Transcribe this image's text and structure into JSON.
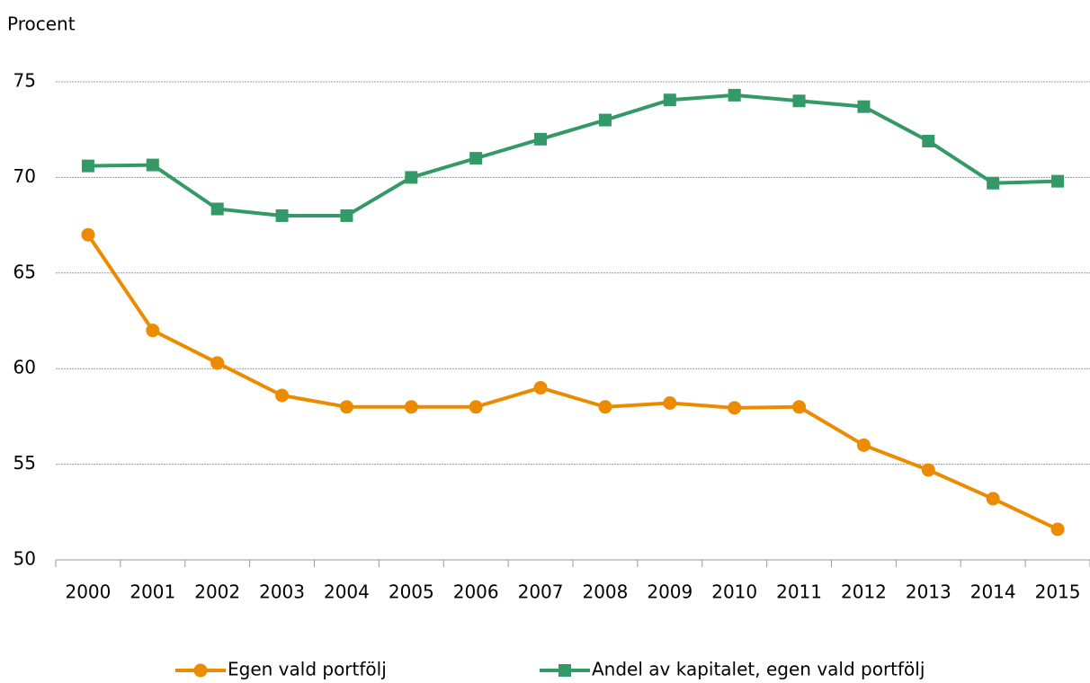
{
  "chart_data": {
    "type": "line",
    "y_label": "Procent",
    "categories": [
      "2000",
      "2001",
      "2002",
      "2003",
      "2004",
      "2005",
      "2006",
      "2007",
      "2008",
      "2009",
      "2010",
      "2011",
      "2012",
      "2013",
      "2014",
      "2015"
    ],
    "series": [
      {
        "name": "Egen vald portfölj",
        "color": "#ed8b00",
        "marker": "circle",
        "values": [
          67,
          62,
          60.3,
          58.6,
          58,
          58,
          58,
          59,
          58,
          58.2,
          57.95,
          58,
          56,
          54.7,
          53.2,
          51.6
        ]
      },
      {
        "name": "Andel av kapitalet, egen vald portfölj",
        "color": "#339966",
        "marker": "square",
        "values": [
          70.6,
          70.65,
          68.35,
          68,
          68,
          70,
          71,
          72,
          73,
          74.05,
          74.3,
          74,
          73.7,
          71.9,
          69.7,
          69.8
        ]
      }
    ],
    "ylim": [
      50,
      75
    ],
    "yticks": [
      50,
      55,
      60,
      65,
      70,
      75
    ],
    "grid": true
  }
}
